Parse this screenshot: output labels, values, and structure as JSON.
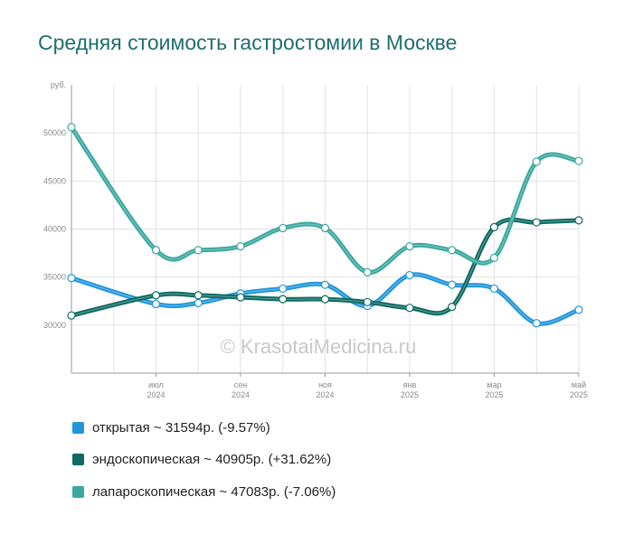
{
  "chart_data": {
    "type": "line",
    "title": "Средняя стоимость гастростомии в Москве",
    "yunit": "руб.",
    "ylim": [
      25000,
      55000
    ],
    "yticks": [
      "30000",
      "35000",
      "40000",
      "45000",
      "50000"
    ],
    "ytick_values": [
      30000,
      35000,
      40000,
      45000,
      50000
    ],
    "x": [
      "2024-05",
      "2024-07",
      "2024-08",
      "2024-09",
      "2024-10",
      "2024-11",
      "2024-12",
      "2025-01",
      "2025-02",
      "2025-03",
      "2025-04",
      "2025-05"
    ],
    "xticks": [
      {
        "month": "июл",
        "year": "2024",
        "x": "2024-07"
      },
      {
        "month": "сен",
        "year": "2024",
        "x": "2024-09"
      },
      {
        "month": "ноя",
        "year": "2024",
        "x": "2024-11"
      },
      {
        "month": "янв",
        "year": "2025",
        "x": "2025-01"
      },
      {
        "month": "мар",
        "year": "2025",
        "x": "2025-03"
      },
      {
        "month": "май",
        "year": "2025",
        "x": "2025-05"
      }
    ],
    "grid": true,
    "watermark": "© KrasotaiMedicina.ru",
    "series": [
      {
        "name": "открытая",
        "color": "#2196db",
        "values": [
          34900,
          32200,
          32300,
          33300,
          33800,
          34200,
          32000,
          35200,
          34200,
          33800,
          30200,
          31594
        ]
      },
      {
        "name": "эндоскопическая",
        "color": "#0e6b62",
        "values": [
          31000,
          33100,
          33100,
          32900,
          32700,
          32700,
          32400,
          31800,
          31900,
          40200,
          40700,
          40905
        ]
      },
      {
        "name": "лапароскопическая",
        "color": "#3aa8a0",
        "values": [
          50600,
          37800,
          37800,
          38200,
          40100,
          40100,
          35500,
          38200,
          37800,
          37000,
          47000,
          47083
        ]
      }
    ]
  },
  "legend": [
    {
      "label": "открытая ~ 31594р. (-9.57%)",
      "color": "#2196db"
    },
    {
      "label": "эндоскопическая ~ 40905р. (+31.62%)",
      "color": "#0e6b62"
    },
    {
      "label": "лапароскопическая ~ 47083р. (-7.06%)",
      "color": "#3aa8a0"
    }
  ]
}
